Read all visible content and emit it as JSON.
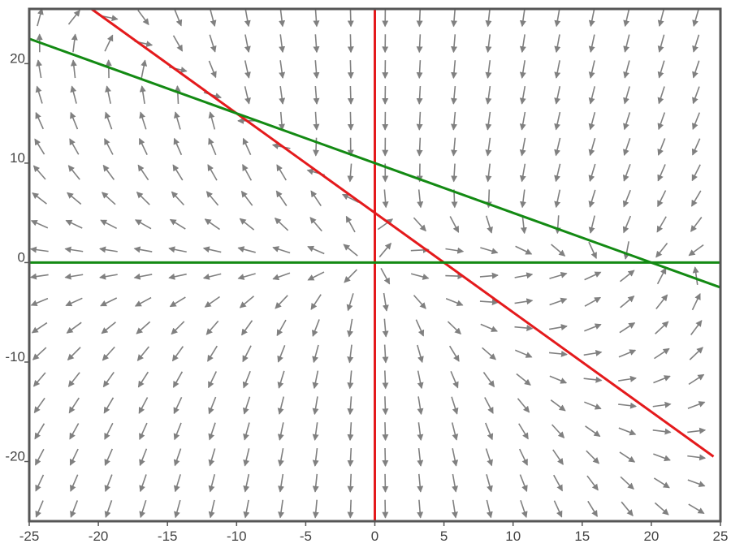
{
  "chart_data": {
    "type": "quiver",
    "title": "",
    "xlabel": "",
    "ylabel": "",
    "xlim": [
      -25,
      25
    ],
    "ylim": [
      -26,
      25.5
    ],
    "x_ticks": [
      -25,
      -20,
      -15,
      -10,
      -5,
      0,
      5,
      10,
      15,
      20,
      25
    ],
    "x_tick_labels": [
      "-25",
      "-20",
      "-15",
      "-10",
      "-5",
      "0",
      "5",
      "10",
      "15",
      "20",
      "25"
    ],
    "y_ticks": [
      -20,
      -10,
      0,
      10,
      20
    ],
    "y_tick_labels": [
      "-20",
      "-10",
      "0",
      "10",
      "20"
    ],
    "grid": false,
    "vector_field": {
      "x_start": -24.25,
      "x_step": 2.5,
      "x_count": 20,
      "y_start": -24.75,
      "y_step": 2.6,
      "y_count": 20,
      "arrow_color": "#808080",
      "dx": "x*(10 - 0.5*x - y) - ...",
      "note_u": "x*(10 - 0.5*x - y)",
      "note_v": "y*(10 - 2*x - 2*y)"
    },
    "nullclines": [
      {
        "type": "vertical",
        "x": 0,
        "color": "#e41a1c"
      },
      {
        "type": "line",
        "x": [
          -20.5,
          24.5
        ],
        "y": [
          25.5,
          -19.5
        ],
        "color": "#e41a1c"
      },
      {
        "type": "horizontal",
        "y": 0,
        "color": "#138a13"
      },
      {
        "type": "line",
        "x": [
          -25,
          25
        ],
        "y": [
          22.5,
          -2.5
        ],
        "color": "#138a13"
      }
    ],
    "frame_color": "#555555"
  }
}
